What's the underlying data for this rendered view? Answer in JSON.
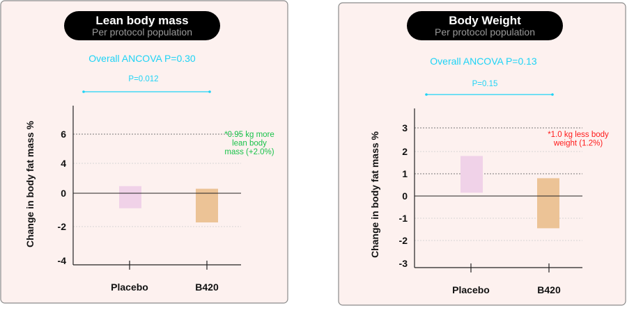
{
  "colors": {
    "panel_bg": "#fdf1ef",
    "panel_border": "#8a8a8a",
    "pill_bg": "#000000",
    "title": "#ffffff",
    "subtitle": "#9a9a9a",
    "stat": "#1ed3f5",
    "placebo": "#f0d2e8",
    "b420": "#ecc396",
    "annotation_positive": "#19c24a",
    "annotation_negative": "#ff1a1a"
  },
  "chart_data": [
    {
      "type": "bar",
      "title": "Lean body mass",
      "subtitle": "Per protocol population",
      "overall_stat": "Overall ANCOVA P=0.30",
      "pairwise_stat": "P=0.012",
      "ylabel": "Change in body fat mass %",
      "categories": [
        "Placebo",
        "B420"
      ],
      "ranges": [
        {
          "category": "Placebo",
          "low": -0.9,
          "high": 0.95
        },
        {
          "category": "B420",
          "low": -1.75,
          "high": 0.6
        }
      ],
      "yticks": [
        "6",
        "4",
        "0",
        "-2",
        "-4"
      ],
      "ytick_values": [
        6,
        4,
        0,
        -2,
        -4
      ],
      "gridlines": [
        6,
        4,
        -2
      ],
      "annotation": [
        "*0.95 kg more",
        "lean body",
        "mass (+2.0%)"
      ],
      "annotation_color": "positive"
    },
    {
      "type": "bar",
      "title": "Body Weight",
      "subtitle": "Per protocol population",
      "overall_stat": "Overall ANCOVA P=0.13",
      "pairwise_stat": "P=0.15",
      "ylabel": "Change in body fat mass %",
      "categories": [
        "Placebo",
        "B420"
      ],
      "ranges": [
        {
          "category": "Placebo",
          "low": 0.15,
          "high": 1.8
        },
        {
          "category": "B420",
          "low": -1.45,
          "high": 0.8
        }
      ],
      "yticks": [
        "3",
        "2",
        "1",
        "0",
        "-1",
        "-2",
        "-3"
      ],
      "ytick_values": [
        3,
        2,
        1,
        0,
        -1,
        -2,
        -3
      ],
      "gridlines": [
        3,
        2,
        1,
        -1,
        -2
      ],
      "annotation": [
        "*1.0 kg less body",
        "weight (1.2%)"
      ],
      "annotation_color": "negative"
    }
  ]
}
